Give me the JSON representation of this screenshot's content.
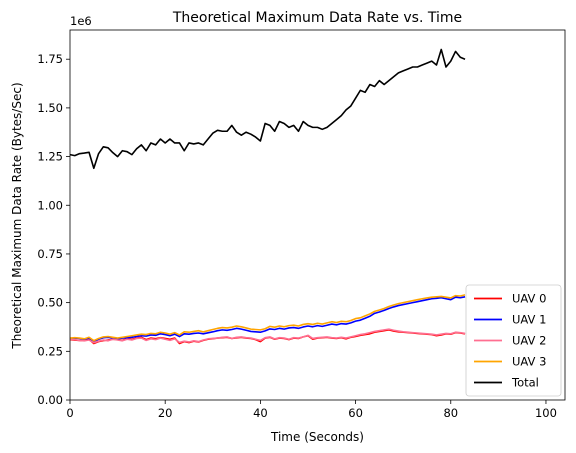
{
  "chart_data": {
    "type": "line",
    "title": "Theoretical Maximum Data Rate vs. Time",
    "xlabel": "Time (Seconds)",
    "ylabel": "Theoretical Maximum Data Rate (Bytes/Sec)",
    "y_offset_text": "1e6",
    "xlim": [
      0,
      104
    ],
    "ylim": [
      0,
      1900000
    ],
    "x_ticks": [
      0,
      20,
      40,
      60,
      80,
      100
    ],
    "x_tick_labels": [
      "0",
      "20",
      "40",
      "60",
      "80",
      "100"
    ],
    "y_ticks": [
      0,
      250000,
      500000,
      750000,
      1000000,
      1250000,
      1500000,
      1750000
    ],
    "y_tick_labels": [
      "0.00",
      "0.25",
      "0.50",
      "0.75",
      "1.00",
      "1.25",
      "1.50",
      "1.75"
    ],
    "grid": false,
    "legend_position": "bottom-right",
    "x_start": 0,
    "x_step": 1,
    "series": [
      {
        "name": "UAV 0",
        "color": "#ff0000",
        "values": [
          310000,
          308000,
          306000,
          305000,
          312000,
          290000,
          300000,
          305000,
          308000,
          312000,
          310000,
          306000,
          315000,
          312000,
          318000,
          322000,
          310000,
          318000,
          315000,
          320000,
          316000,
          312000,
          318000,
          290000,
          300000,
          295000,
          302000,
          298000,
          306000,
          312000,
          315000,
          318000,
          320000,
          322000,
          316000,
          319000,
          322000,
          318000,
          316000,
          310000,
          300000,
          318000,
          322000,
          312000,
          318000,
          316000,
          310000,
          318000,
          316000,
          324000,
          330000,
          312000,
          318000,
          320000,
          322000,
          318000,
          316000,
          320000,
          314000,
          322000,
          326000,
          332000,
          336000,
          340000,
          348000,
          352000,
          356000,
          360000,
          354000,
          350000,
          348000,
          346000,
          344000,
          342000,
          340000,
          338000,
          336000,
          330000,
          334000,
          340000,
          338000,
          346000,
          344000,
          340000
        ]
      },
      {
        "name": "UAV 1",
        "color": "#0000ff",
        "values": [
          315000,
          318000,
          316000,
          312000,
          318000,
          300000,
          312000,
          320000,
          322000,
          318000,
          314000,
          318000,
          320000,
          322000,
          326000,
          330000,
          328000,
          334000,
          332000,
          340000,
          336000,
          330000,
          338000,
          326000,
          340000,
          338000,
          342000,
          344000,
          340000,
          345000,
          350000,
          356000,
          360000,
          358000,
          362000,
          368000,
          364000,
          358000,
          352000,
          350000,
          348000,
          355000,
          365000,
          362000,
          368000,
          364000,
          370000,
          372000,
          368000,
          375000,
          380000,
          376000,
          382000,
          378000,
          384000,
          390000,
          386000,
          392000,
          390000,
          396000,
          405000,
          410000,
          420000,
          430000,
          445000,
          452000,
          460000,
          470000,
          478000,
          485000,
          490000,
          495000,
          500000,
          505000,
          510000,
          515000,
          520000,
          522000,
          525000,
          520000,
          515000,
          528000,
          525000,
          530000
        ]
      },
      {
        "name": "UAV 2",
        "color": "#ff6f91",
        "values": [
          312000,
          310000,
          306000,
          304000,
          308000,
          295000,
          302000,
          308000,
          304000,
          312000,
          308000,
          304000,
          312000,
          308000,
          316000,
          318000,
          306000,
          314000,
          310000,
          318000,
          312000,
          306000,
          314000,
          296000,
          302000,
          298000,
          304000,
          300000,
          308000,
          314000,
          316000,
          318000,
          322000,
          324000,
          316000,
          322000,
          324000,
          320000,
          318000,
          312000,
          306000,
          320000,
          324000,
          314000,
          320000,
          318000,
          312000,
          320000,
          318000,
          324000,
          332000,
          316000,
          320000,
          322000,
          324000,
          320000,
          318000,
          322000,
          318000,
          324000,
          330000,
          336000,
          340000,
          346000,
          352000,
          356000,
          360000,
          364000,
          358000,
          354000,
          350000,
          348000,
          346000,
          344000,
          342000,
          340000,
          338000,
          334000,
          338000,
          342000,
          340000,
          348000,
          346000,
          342000
        ]
      },
      {
        "name": "UAV 3",
        "color": "#ffa500",
        "values": [
          318000,
          320000,
          318000,
          314000,
          322000,
          305000,
          316000,
          324000,
          326000,
          322000,
          318000,
          322000,
          326000,
          330000,
          334000,
          338000,
          336000,
          342000,
          340000,
          348000,
          344000,
          338000,
          346000,
          334000,
          350000,
          348000,
          352000,
          356000,
          350000,
          356000,
          362000,
          368000,
          372000,
          370000,
          374000,
          380000,
          376000,
          370000,
          364000,
          362000,
          360000,
          366000,
          378000,
          374000,
          380000,
          376000,
          382000,
          384000,
          380000,
          388000,
          392000,
          388000,
          394000,
          390000,
          396000,
          402000,
          398000,
          404000,
          402000,
          408000,
          418000,
          422000,
          432000,
          442000,
          455000,
          462000,
          470000,
          480000,
          488000,
          495000,
          500000,
          505000,
          510000,
          515000,
          520000,
          524000,
          528000,
          530000,
          532000,
          528000,
          524000,
          536000,
          534000,
          540000
        ]
      },
      {
        "name": "Total",
        "color": "#000000",
        "values": [
          1260000,
          1255000,
          1265000,
          1268000,
          1272000,
          1190000,
          1265000,
          1300000,
          1295000,
          1270000,
          1250000,
          1280000,
          1275000,
          1260000,
          1290000,
          1310000,
          1280000,
          1320000,
          1310000,
          1340000,
          1320000,
          1340000,
          1320000,
          1320000,
          1280000,
          1320000,
          1315000,
          1320000,
          1310000,
          1340000,
          1370000,
          1385000,
          1380000,
          1380000,
          1410000,
          1375000,
          1360000,
          1375000,
          1365000,
          1350000,
          1330000,
          1420000,
          1410000,
          1380000,
          1430000,
          1420000,
          1400000,
          1410000,
          1380000,
          1430000,
          1410000,
          1400000,
          1400000,
          1390000,
          1400000,
          1420000,
          1440000,
          1460000,
          1490000,
          1510000,
          1550000,
          1590000,
          1580000,
          1620000,
          1610000,
          1640000,
          1620000,
          1640000,
          1660000,
          1680000,
          1690000,
          1700000,
          1710000,
          1710000,
          1720000,
          1730000,
          1740000,
          1720000,
          1800000,
          1710000,
          1740000,
          1790000,
          1760000,
          1750000
        ]
      }
    ]
  }
}
